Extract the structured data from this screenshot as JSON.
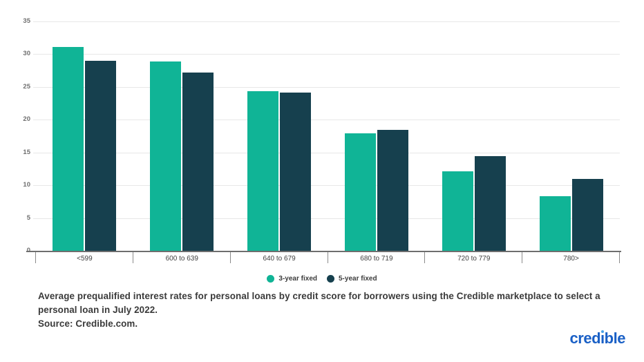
{
  "chart_data": {
    "type": "bar",
    "categories": [
      "<599",
      "600 to 639",
      "640 to 679",
      "680 to 719",
      "720 to 779",
      "780>"
    ],
    "series": [
      {
        "name": "3-year fixed",
        "color": "#10b496",
        "values": [
          31.1,
          28.9,
          24.3,
          17.9,
          12.1,
          8.3
        ]
      },
      {
        "name": "5-year fixed",
        "color": "#16404e",
        "values": [
          29.0,
          27.2,
          24.1,
          18.5,
          14.4,
          11.0
        ]
      }
    ],
    "title": "",
    "xlabel": "",
    "ylabel": "",
    "ylim": [
      0,
      35
    ],
    "ytick_step": 5,
    "grid": true,
    "legend_position": "bottom"
  },
  "caption": {
    "line1": "Average prequalified interest rates for personal loans by credit score for borrowers using the Credible marketplace to select a personal loan in July 2022.",
    "line2": "Source: Credible.com."
  },
  "logo": {
    "text": "credible",
    "color": "#1a60c6",
    "dot_color": "#4aa3e6"
  }
}
